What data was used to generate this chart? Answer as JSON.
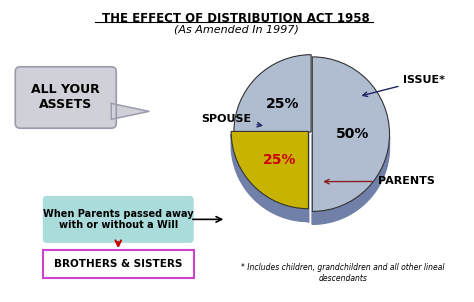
{
  "title_line1": "THE EFFECT OF DISTRIBUTION ACT 1958",
  "title_line2": "(As Amended In 1997)",
  "pie_sizes": [
    50,
    25,
    25
  ],
  "pie_labels": [
    "ISSUE*",
    "SPOUSE",
    "PARENTS"
  ],
  "pie_colors": [
    "#b0bcd0",
    "#b0bcd0",
    "#c8b400"
  ],
  "pie_pct_labels": [
    "50%",
    "25%",
    "25%"
  ],
  "pie_pct_colors": [
    "#000000",
    "#000000",
    "#cc0000"
  ],
  "assets_box_text": "ALL YOUR\nASSETS",
  "assets_box_color": "#d0d0d8",
  "spouse_label": "SPOUSE",
  "issue_label": "ISSUE*",
  "parents_label": "PARENTS",
  "when_parents_text": "When Parents passed away\nwith or without a Will",
  "when_parents_bg": "#aadcdc",
  "brothers_text": "BROTHERS & SISTERS",
  "brothers_border": "#cc44cc",
  "footnote": "* Includes children, grandchildren and all other lineal\ndescendants",
  "bg_color": "#ffffff",
  "side_color": "#7080a8",
  "edge_color": "#333333"
}
